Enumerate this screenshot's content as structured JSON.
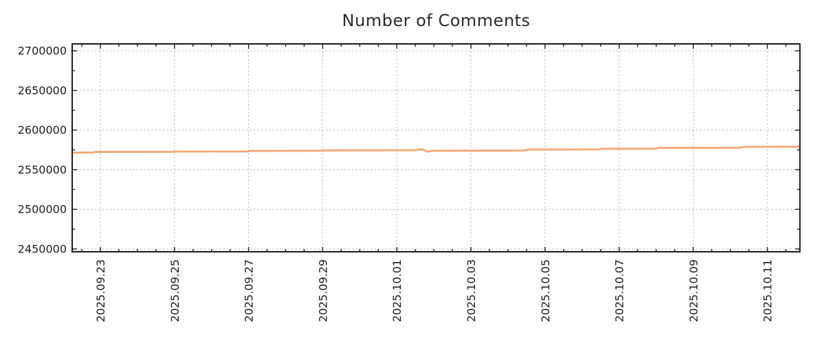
{
  "chart_data": {
    "type": "line",
    "title": "Number of Comments",
    "legend": "none",
    "grid": "dotted",
    "series": [
      {
        "name": "Number of Comments",
        "color": "#f6a97a",
        "points": [
          [
            "2025-09-22 05:45",
            2571500
          ],
          [
            "2025-09-22 19:00",
            2571600
          ],
          [
            "2025-09-22 21:00",
            2572400
          ],
          [
            "2025-09-24 23:00",
            2572500
          ],
          [
            "2025-09-25 02:00",
            2572900
          ],
          [
            "2025-09-26 23:00",
            2573000
          ],
          [
            "2025-09-27 02:00",
            2573700
          ],
          [
            "2025-09-28 20:00",
            2574000
          ],
          [
            "2025-09-29 02:00",
            2574400
          ],
          [
            "2025-10-01 12:00",
            2574600
          ],
          [
            "2025-10-01 16:00",
            2575900
          ],
          [
            "2025-10-01 20:00",
            2572800
          ],
          [
            "2025-10-02 00:00",
            2574000
          ],
          [
            "2025-10-04 10:00",
            2574200
          ],
          [
            "2025-10-04 13:00",
            2575400
          ],
          [
            "2025-10-06 10:00",
            2575500
          ],
          [
            "2025-10-06 13:00",
            2576400
          ],
          [
            "2025-10-07 23:00",
            2576500
          ],
          [
            "2025-10-08 02:00",
            2577600
          ],
          [
            "2025-10-10 06:00",
            2577700
          ],
          [
            "2025-10-10 09:00",
            2578800
          ],
          [
            "2025-10-11 21:00",
            2578900
          ]
        ]
      }
    ],
    "x_axis": {
      "range": [
        "2025-09-22 05:45",
        "2025-10-11 21:05"
      ],
      "major_ticks": [
        {
          "t": "2025-09-23 00:00",
          "label": "2025.09.23"
        },
        {
          "t": "2025-09-25 00:00",
          "label": "2025.09.25"
        },
        {
          "t": "2025-09-27 00:00",
          "label": "2025.09.27"
        },
        {
          "t": "2025-09-29 00:00",
          "label": "2025.09.29"
        },
        {
          "t": "2025-10-01 00:00",
          "label": "2025.10.01"
        },
        {
          "t": "2025-10-03 00:00",
          "label": "2025.10.03"
        },
        {
          "t": "2025-10-05 00:00",
          "label": "2025.10.05"
        },
        {
          "t": "2025-10-07 00:00",
          "label": "2025.10.07"
        },
        {
          "t": "2025-10-09 00:00",
          "label": "2025.10.09"
        },
        {
          "t": "2025-10-11 00:00",
          "label": "2025.10.11"
        }
      ],
      "minor_tick_hours": 12,
      "label_rotation_deg": -90,
      "grid": true
    },
    "y_axis": {
      "range": [
        2446500,
        2708700
      ],
      "major_ticks": [
        {
          "v": 2450000,
          "label": "2450000"
        },
        {
          "v": 2500000,
          "label": "2500000"
        },
        {
          "v": 2550000,
          "label": "2550000"
        },
        {
          "v": 2600000,
          "label": "2600000"
        },
        {
          "v": 2650000,
          "label": "2650000"
        },
        {
          "v": 2700000,
          "label": "2700000"
        }
      ],
      "minor_tick_step": 25000,
      "grid": true
    },
    "styles": {
      "line_color": "#f6a97a",
      "line_width": 3,
      "grid_color": "#ababab",
      "axis_color": "#1a1a1a",
      "text_color": "#1c1c1c",
      "title_color": "#2b2b2b",
      "background": "#ffffff"
    }
  }
}
